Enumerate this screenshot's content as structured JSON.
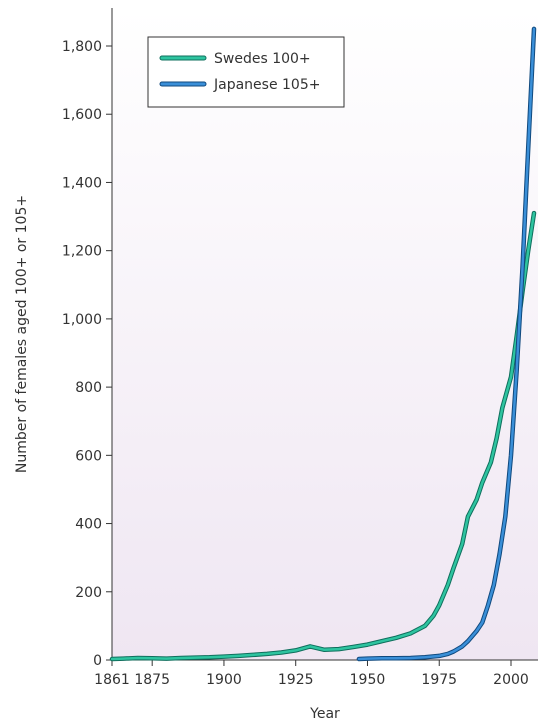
{
  "chart_data": {
    "type": "line",
    "title": "",
    "xlabel": "Year",
    "ylabel": "Number of females aged 100+ or 105+",
    "xlim": [
      1861,
      2010
    ],
    "ylim": [
      0,
      1900
    ],
    "xticks": [
      1861,
      1875,
      1900,
      1925,
      1950,
      1975,
      2000
    ],
    "xtick_labels": [
      "1861",
      "1875",
      "1900",
      "1925",
      "1950",
      "1975",
      "2000"
    ],
    "yticks": [
      0,
      200,
      400,
      600,
      800,
      1000,
      1200,
      1400,
      1600,
      1800
    ],
    "ytick_labels": [
      "0",
      "200",
      "400",
      "600",
      "800",
      "1,000",
      "1,200",
      "1,400",
      "1,600",
      "1,800"
    ],
    "legend": "top-left",
    "series": [
      {
        "name": "Swedes 100+",
        "color": "#2ec4a0",
        "x": [
          1861,
          1865,
          1870,
          1875,
          1880,
          1885,
          1890,
          1895,
          1900,
          1905,
          1910,
          1915,
          1920,
          1925,
          1930,
          1935,
          1940,
          1945,
          1950,
          1955,
          1960,
          1965,
          1970,
          1973,
          1975,
          1978,
          1980,
          1983,
          1985,
          1988,
          1990,
          1993,
          1995,
          1997,
          2000,
          2002,
          2004,
          2006,
          2008
        ],
        "y": [
          3,
          4,
          6,
          5,
          4,
          6,
          7,
          8,
          10,
          12,
          15,
          18,
          22,
          28,
          40,
          30,
          32,
          38,
          45,
          55,
          65,
          78,
          100,
          130,
          160,
          220,
          270,
          340,
          420,
          470,
          520,
          580,
          650,
          740,
          830,
          950,
          1080,
          1200,
          1310
        ]
      },
      {
        "name": "Japanese 105+",
        "color": "#3a8fd8",
        "x": [
          1947,
          1950,
          1955,
          1960,
          1965,
          1970,
          1975,
          1978,
          1980,
          1983,
          1985,
          1988,
          1990,
          1992,
          1994,
          1996,
          1998,
          2000,
          2002,
          2004,
          2006,
          2008
        ],
        "y": [
          3,
          4,
          5,
          5,
          6,
          8,
          12,
          18,
          25,
          40,
          55,
          85,
          110,
          160,
          220,
          310,
          420,
          600,
          850,
          1150,
          1500,
          1850
        ]
      }
    ]
  }
}
